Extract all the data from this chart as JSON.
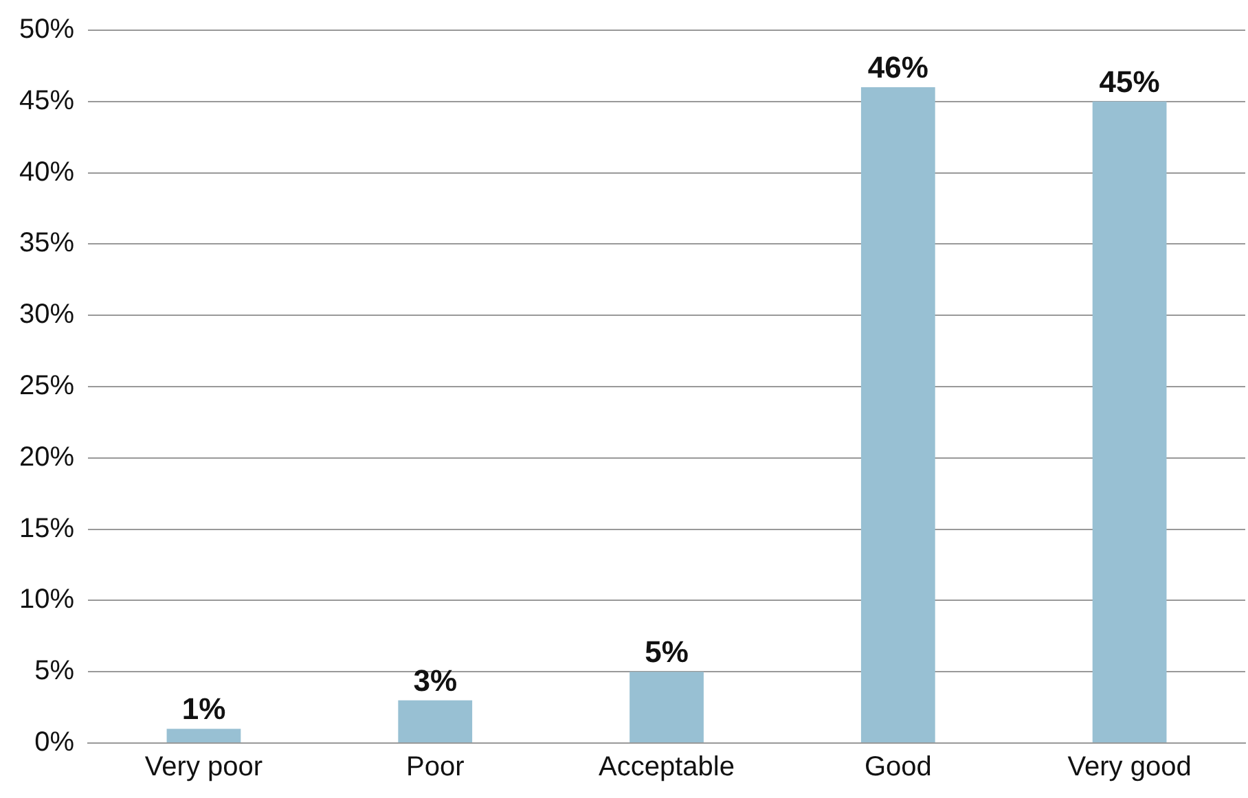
{
  "chart_data": {
    "type": "bar",
    "categories": [
      "Very poor",
      "Poor",
      "Acceptable",
      "Good",
      "Very good"
    ],
    "values": [
      1,
      3,
      5,
      46,
      45
    ],
    "value_labels": [
      "1%",
      "3%",
      "5%",
      "46%",
      "45%"
    ],
    "color": "#98c0d3",
    "ylim": [
      0,
      50
    ],
    "yticks": [
      {
        "value": 0,
        "label": "0%"
      },
      {
        "value": 5,
        "label": "5%"
      },
      {
        "value": 10,
        "label": "10%"
      },
      {
        "value": 15,
        "label": "15%"
      },
      {
        "value": 20,
        "label": "20%"
      },
      {
        "value": 25,
        "label": "25%"
      },
      {
        "value": 30,
        "label": "30%"
      },
      {
        "value": 35,
        "label": "35%"
      },
      {
        "value": 40,
        "label": "40%"
      },
      {
        "value": 45,
        "label": "45%"
      },
      {
        "value": 50,
        "label": "50%"
      }
    ],
    "grid": "y",
    "legend": false
  }
}
